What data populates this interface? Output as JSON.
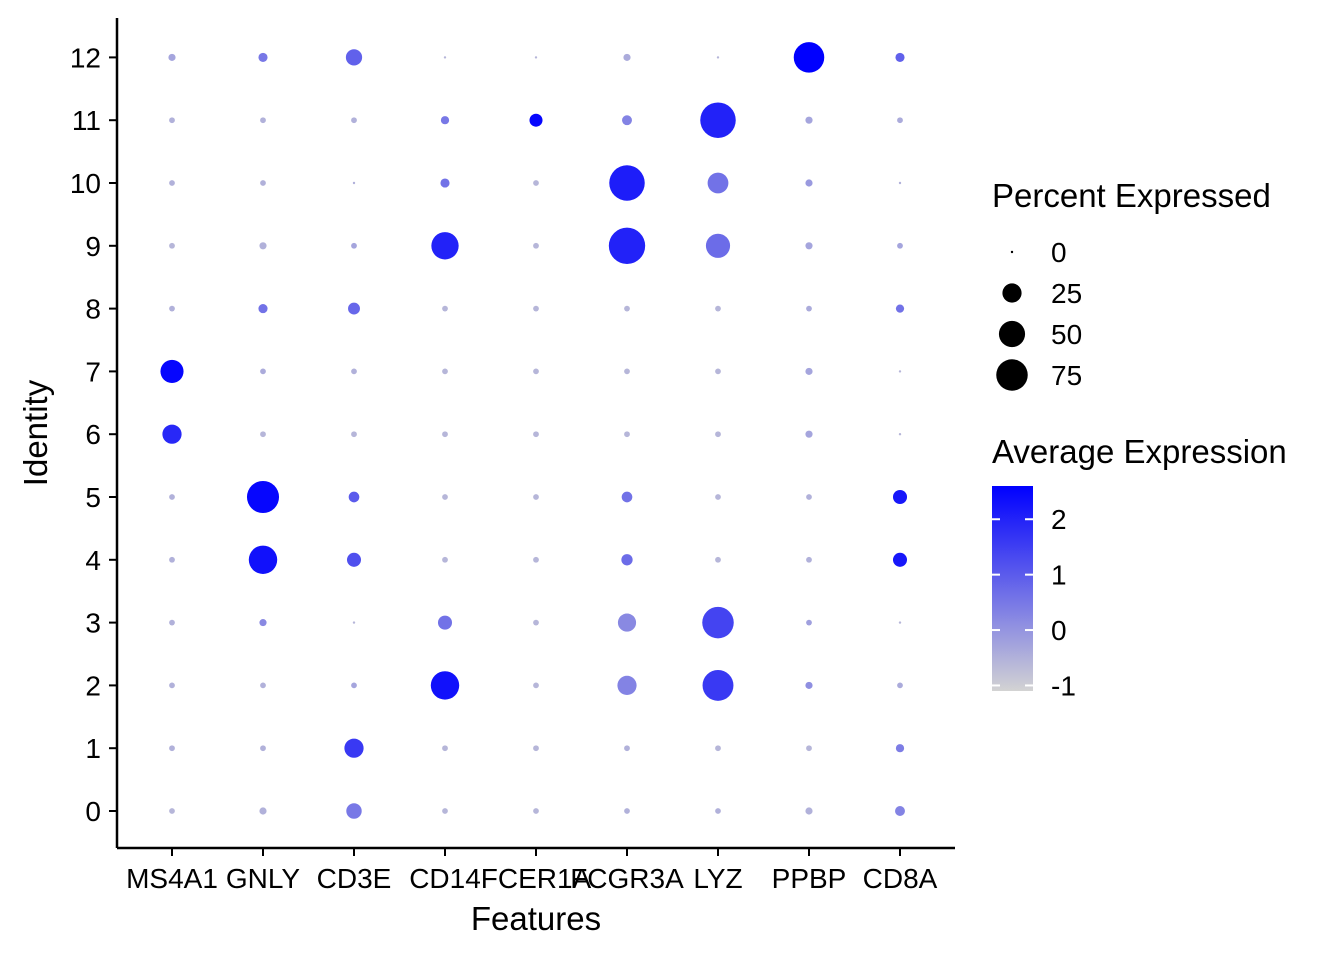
{
  "chart_data": {
    "type": "dot",
    "xlabel": "Features",
    "ylabel": "Identity",
    "features": [
      "MS4A1",
      "GNLY",
      "CD3E",
      "CD14",
      "FCER1A",
      "FCGR3A",
      "LYZ",
      "PPBP",
      "CD8A"
    ],
    "identities": [
      "0",
      "1",
      "2",
      "3",
      "4",
      "5",
      "6",
      "7",
      "8",
      "9",
      "10",
      "11",
      "12"
    ],
    "percent_expressed": [
      [
        1,
        2,
        15,
        1,
        1,
        1,
        1,
        2,
        5
      ],
      [
        1,
        1,
        25,
        1,
        1,
        1,
        1,
        1,
        3
      ],
      [
        1,
        1,
        1,
        60,
        1,
        25,
        72,
        2,
        1
      ],
      [
        1,
        2,
        0,
        12,
        1,
        22,
        75,
        1,
        0
      ],
      [
        1,
        60,
        12,
        1,
        1,
        7,
        1,
        1,
        12
      ],
      [
        1,
        78,
        6,
        1,
        1,
        6,
        1,
        1,
        12
      ],
      [
        25,
        1,
        1,
        1,
        1,
        1,
        1,
        2,
        0
      ],
      [
        38,
        1,
        1,
        1,
        1,
        1,
        1,
        2,
        0
      ],
      [
        1,
        4,
        8,
        1,
        1,
        1,
        1,
        1,
        3
      ],
      [
        1,
        2,
        1,
        55,
        1,
        102,
        42,
        2,
        1
      ],
      [
        1,
        1,
        0,
        4,
        1,
        97,
        30,
        2,
        0
      ],
      [
        1,
        1,
        1,
        3,
        10,
        5,
        97,
        2,
        1
      ],
      [
        2,
        4,
        17,
        0,
        0,
        2,
        0,
        70,
        4
      ]
    ],
    "average_expression": [
      [
        -0.6,
        -0.5,
        0.5,
        -0.6,
        -0.6,
        -0.5,
        -0.5,
        -0.5,
        0.3
      ],
      [
        -0.5,
        -0.5,
        1.6,
        -0.6,
        -0.6,
        -0.5,
        -0.6,
        -0.6,
        0.4
      ],
      [
        -0.5,
        -0.5,
        -0.3,
        2.3,
        -0.6,
        0.3,
        1.6,
        0.1,
        -0.4
      ],
      [
        -0.5,
        0.2,
        -0.6,
        0.6,
        -0.6,
        0.2,
        1.4,
        -0.2,
        -0.6
      ],
      [
        -0.5,
        2.3,
        1.2,
        -0.6,
        -0.6,
        0.7,
        -0.6,
        -0.5,
        2.2
      ],
      [
        -0.5,
        2.5,
        1.0,
        -0.6,
        -0.6,
        0.6,
        -0.6,
        -0.5,
        2.2
      ],
      [
        1.9,
        -0.6,
        -0.6,
        -0.6,
        -0.6,
        -0.6,
        -0.6,
        -0.3,
        -0.6
      ],
      [
        2.5,
        -0.4,
        -0.5,
        -0.6,
        -0.6,
        -0.6,
        -0.6,
        -0.3,
        -0.6
      ],
      [
        -0.5,
        0.6,
        0.8,
        -0.6,
        -0.6,
        -0.6,
        -0.6,
        -0.4,
        0.6
      ],
      [
        -0.6,
        -0.5,
        -0.3,
        2.0,
        -0.6,
        2.0,
        0.7,
        -0.3,
        -0.3
      ],
      [
        -0.5,
        -0.5,
        -0.5,
        0.6,
        -0.6,
        2.1,
        0.6,
        -0.1,
        -0.5
      ],
      [
        -0.5,
        -0.5,
        -0.5,
        0.5,
        2.5,
        0.3,
        2.0,
        -0.3,
        -0.4
      ],
      [
        -0.3,
        0.5,
        0.9,
        -0.6,
        -0.6,
        -0.4,
        -0.6,
        2.6,
        0.9
      ]
    ],
    "size_legend": {
      "title": "Percent Expressed",
      "breaks": [
        0,
        25,
        50,
        75
      ],
      "labels": [
        "0",
        "25",
        "50",
        "75"
      ]
    },
    "color_legend": {
      "title": "Average Expression",
      "ticks": [
        2,
        1,
        0,
        -1
      ],
      "labels": [
        "2",
        "1",
        "0",
        "-1"
      ],
      "range": [
        -1.1,
        2.6
      ],
      "low_color": "#d3d3d3",
      "high_color": "#0000ff"
    },
    "grid": false,
    "legend_position": "right"
  }
}
